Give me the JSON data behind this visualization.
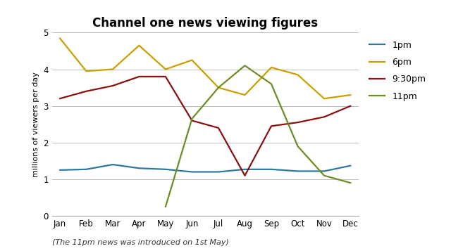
{
  "title": "Channel one news viewing figures",
  "ylabel": "millions of viewers per day",
  "subtitle": "(The 11pm news was introduced on 1st May)",
  "months": [
    "Jan",
    "Feb",
    "Mar",
    "Apr",
    "May",
    "Jun",
    "Jul",
    "Aug",
    "Sep",
    "Oct",
    "Nov",
    "Dec"
  ],
  "series": {
    "1pm": {
      "color": "#2B7A9A",
      "values": [
        1.25,
        1.27,
        1.4,
        1.3,
        1.27,
        1.2,
        1.2,
        1.27,
        1.27,
        1.22,
        1.22,
        1.37
      ]
    },
    "6pm": {
      "color": "#C8A000",
      "values": [
        4.85,
        3.95,
        4.0,
        4.65,
        4.0,
        4.25,
        3.5,
        3.3,
        4.05,
        3.85,
        3.2,
        3.3
      ]
    },
    "9:30pm": {
      "color": "#8B1010",
      "values": [
        3.2,
        3.4,
        3.55,
        3.8,
        3.8,
        2.6,
        2.4,
        1.1,
        2.45,
        2.55,
        2.7,
        3.0
      ]
    },
    "11pm": {
      "color": "#6B8E23",
      "values": [
        null,
        null,
        null,
        null,
        0.25,
        2.65,
        3.5,
        4.1,
        3.6,
        1.9,
        1.1,
        0.9
      ]
    }
  },
  "ylim": [
    0,
    5
  ],
  "yticks": [
    0,
    1,
    2,
    3,
    4,
    5
  ],
  "legend_labels": [
    "1pm",
    "6pm",
    "9:30pm",
    "11pm"
  ],
  "background_color": "#ffffff",
  "grid_color": "#bbbbbb",
  "title_fontsize": 12,
  "label_fontsize": 8,
  "tick_fontsize": 8.5,
  "legend_fontsize": 9,
  "subtitle_fontsize": 8
}
